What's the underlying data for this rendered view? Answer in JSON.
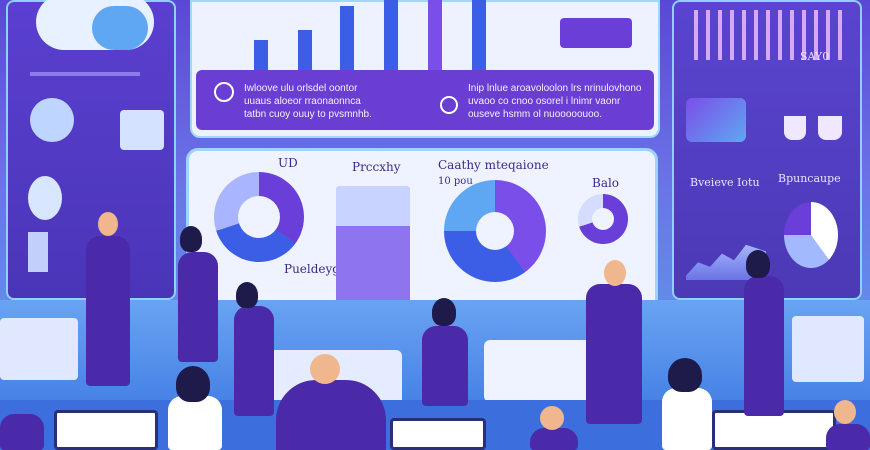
{
  "top_panel": {
    "left_text": "Iwloove ulu orlsdel oontor\nuuaus aloeor rraonaonnca\ntatbn cuoy ouuy to pvsmnhb.",
    "right_text": "Inip lnlue aroavoloolon lrs nrinulovhono\nuvaoo co cnoo osorel i lnimr vaonr\nouseve hsmm ol nuooooouoo."
  },
  "center_board": {
    "label_a": "UD",
    "label_b": "Prccxhy",
    "label_c": "Caathy mteqaione",
    "label_c2": "10 pou",
    "label_d": "Pueldeygi",
    "label_e": "Balo"
  },
  "right_panel": {
    "heading_1": "Bveieve Iotu",
    "heading_2": "Bpuncaupe",
    "stat": "SAY0"
  },
  "colors": {
    "primary": "#5a47d6",
    "accent": "#7d4df0",
    "light": "#eef3ff",
    "blue": "#3c5ee6"
  },
  "icons": [
    "cloud-icon",
    "map-icon",
    "donut-chart-icon",
    "pie-chart-icon",
    "bar-chart-icon",
    "coffee-cup-icon"
  ]
}
